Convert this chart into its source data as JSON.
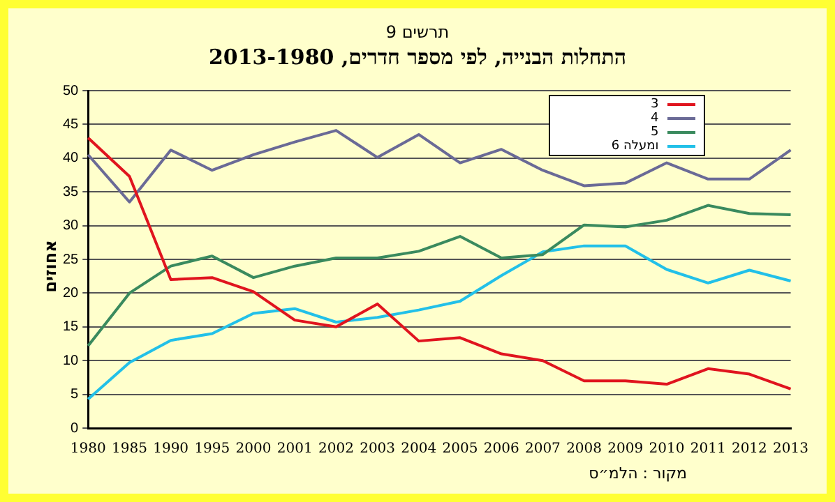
{
  "chart_data": {
    "type": "line",
    "subtitle": "תרשים 9",
    "title": "התחלות הבנייה, לפי מספר חדרים, 2013-1980",
    "ylabel": "אחוזים",
    "categories": [
      "1980",
      "1985",
      "1990",
      "1995",
      "2000",
      "2001",
      "2002",
      "2003",
      "2004",
      "2005",
      "2006",
      "2007",
      "2008",
      "2009",
      "2010",
      "2011",
      "2012",
      "2013"
    ],
    "series": [
      {
        "name": "3",
        "color": "#e0141e",
        "values": [
          43,
          37.3,
          22,
          22.3,
          20.2,
          16,
          15,
          18.4,
          12.9,
          13.4,
          11,
          10,
          7,
          7,
          6.5,
          8.8,
          8,
          5.8
        ]
      },
      {
        "name": "4",
        "color": "#6a6a96",
        "values": [
          40.5,
          33.5,
          41.2,
          38.2,
          40.5,
          42.4,
          44.1,
          40.1,
          43.5,
          39.3,
          41.3,
          38.2,
          35.9,
          36.3,
          39.3,
          36.9,
          36.9,
          41.2
        ]
      },
      {
        "name": "5",
        "color": "#3a8a5e",
        "values": [
          12.2,
          20,
          24,
          25.5,
          22.3,
          24,
          25.2,
          25.2,
          26.2,
          28.4,
          25.2,
          25.7,
          30.1,
          29.8,
          30.8,
          33,
          31.8,
          31.6
        ]
      },
      {
        "name": "6 ומעלה",
        "color": "#22c0e8",
        "values": [
          4.3,
          9.7,
          13,
          14,
          17,
          17.7,
          15.7,
          16.4,
          17.5,
          18.8,
          22.6,
          26.1,
          27,
          27,
          23.5,
          21.5,
          23.4,
          21.8
        ]
      }
    ],
    "ylim": [
      0,
      50
    ],
    "yticks": [
      0,
      5,
      10,
      15,
      20,
      25,
      30,
      35,
      40,
      45,
      50
    ],
    "grid": "y",
    "legend": "top right",
    "marker": "none",
    "line_style": "solid",
    "annotations": [
      "מקור : הלמ״ס"
    ]
  }
}
